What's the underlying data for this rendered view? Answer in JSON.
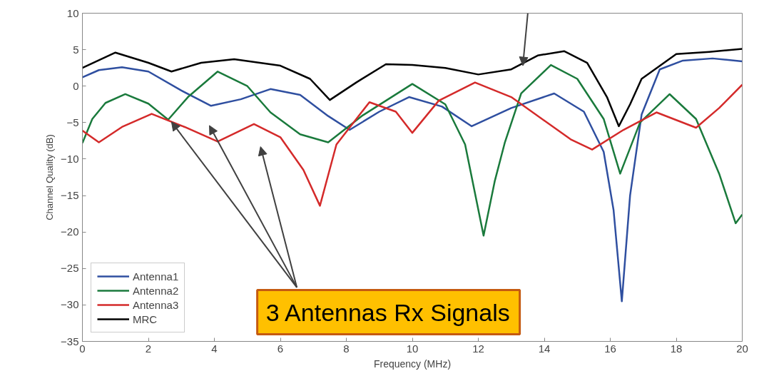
{
  "chart_data": {
    "type": "line",
    "xlabel": "Frequency (MHz)",
    "ylabel": "Channel Quality (dB)",
    "xlim": [
      0,
      20
    ],
    "ylim": [
      -35,
      10
    ],
    "xticks": [
      0,
      2,
      4,
      6,
      8,
      10,
      12,
      14,
      16,
      18,
      20
    ],
    "yticks": [
      -35,
      -30,
      -25,
      -20,
      -15,
      -10,
      -5,
      0,
      5,
      10
    ],
    "grid": false,
    "legend": "bottom left",
    "line_style": "solid",
    "marker": "none",
    "annotations": [
      {
        "text": "3 Antennas Rx Signals",
        "x": 2.7,
        "y": -4.9
      }
    ],
    "series": [
      {
        "name": "Antenna1",
        "color": "#2f4fa0",
        "x": [
          0,
          0.5,
          1.2,
          2,
          3,
          3.9,
          4.8,
          5.7,
          6.6,
          7.45,
          8.1,
          9,
          9.9,
          10.9,
          11.8,
          13,
          14.3,
          15.2,
          15.8,
          16.1,
          16.35,
          16.6,
          16.95,
          17.5,
          18.2,
          19.1,
          20
        ],
        "values": [
          1.2,
          2.2,
          2.6,
          2.0,
          -0.6,
          -2.7,
          -1.8,
          -0.4,
          -1.2,
          -4.1,
          -6.0,
          -3.5,
          -1.5,
          -2.8,
          -5.5,
          -3.0,
          -1.0,
          -3.5,
          -9.0,
          -17.0,
          -29.5,
          -15.0,
          -3.9,
          2.3,
          3.5,
          3.8,
          3.4
        ]
      },
      {
        "name": "Antenna2",
        "color": "#1a7a3c",
        "x": [
          0,
          0.3,
          0.7,
          1.3,
          2,
          2.6,
          3.2,
          4.1,
          5,
          5.7,
          6.6,
          7.45,
          8.5,
          10.0,
          11,
          11.6,
          12.16,
          12.5,
          12.8,
          13.3,
          14.2,
          15,
          15.8,
          16.3,
          16.9,
          17.8,
          18.6,
          19.3,
          19.8,
          20
        ],
        "values": [
          -7.8,
          -4.5,
          -2.3,
          -1.1,
          -2.4,
          -4.6,
          -1.5,
          2.0,
          0.0,
          -3.6,
          -6.6,
          -7.7,
          -4.0,
          0.3,
          -2.5,
          -8.0,
          -20.5,
          -13.0,
          -7.8,
          -1.0,
          2.9,
          1.0,
          -4.5,
          -12.0,
          -5.0,
          -1.1,
          -4.5,
          -12.0,
          -18.8,
          -17.6
        ]
      },
      {
        "name": "Antenna3",
        "color": "#d42a2a",
        "x": [
          0,
          0.5,
          1.2,
          2.1,
          3.1,
          4.1,
          5.2,
          6,
          6.7,
          7.2,
          7.7,
          8.7,
          9.5,
          10.0,
          10.8,
          11.9,
          13,
          14.8,
          15.45,
          16.4,
          17.4,
          18.6,
          19.3,
          20
        ],
        "values": [
          -6.1,
          -7.7,
          -5.6,
          -3.8,
          -5.6,
          -7.6,
          -5.2,
          -7.0,
          -11.5,
          -16.4,
          -8.0,
          -2.2,
          -3.5,
          -6.4,
          -2.0,
          0.5,
          -1.5,
          -7.3,
          -8.7,
          -6.0,
          -3.6,
          -5.7,
          -3.0,
          0.2
        ]
      },
      {
        "name": "MRC",
        "color": "#000000",
        "x": [
          0,
          1.0,
          2.0,
          2.7,
          3.6,
          4.6,
          6,
          6.9,
          7.5,
          8.3,
          9.2,
          10.0,
          11,
          12.0,
          13,
          13.8,
          14.6,
          15.3,
          15.9,
          16.26,
          16.6,
          16.95,
          18.0,
          19,
          20
        ],
        "values": [
          2.5,
          4.6,
          3.2,
          2.0,
          3.2,
          3.7,
          2.8,
          1.0,
          -1.9,
          0.5,
          3.0,
          2.9,
          2.5,
          1.6,
          2.3,
          4.2,
          4.8,
          3.2,
          -1.5,
          -5.5,
          -2.5,
          1.0,
          4.4,
          4.7,
          5.1
        ]
      }
    ]
  }
}
